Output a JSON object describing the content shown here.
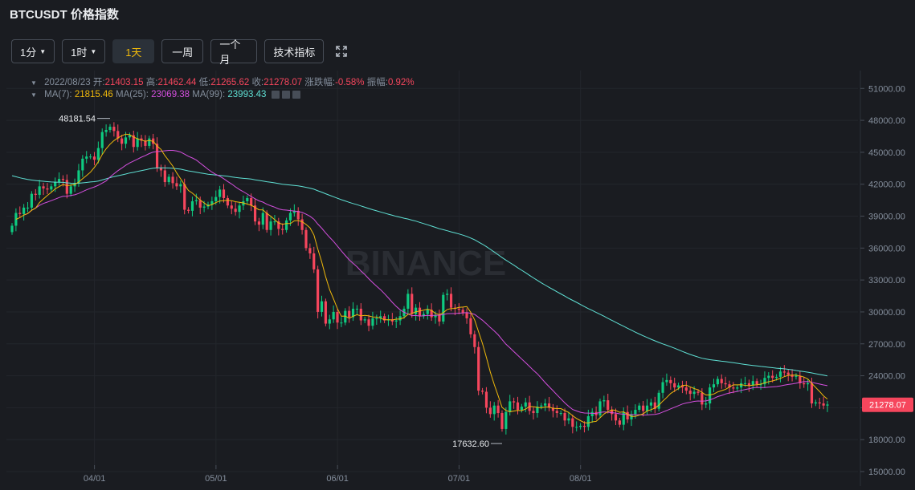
{
  "header": {
    "title": "BTCUSDT 价格指数"
  },
  "toolbar": {
    "interval_1m": "1分",
    "interval_1h": "1时",
    "interval_1d": "1天",
    "interval_1w": "一周",
    "interval_1M": "一个月",
    "indicators": "技术指标"
  },
  "ohlc": {
    "date": "2022/08/23",
    "open_label": "开:",
    "open": "21403.15",
    "high_label": "高:",
    "high": "21462.44",
    "low_label": "低:",
    "low": "21265.62",
    "close_label": "收:",
    "close": "21278.07",
    "change_label": "涨跌幅:",
    "change": "-0.58%",
    "amp_label": "振幅:",
    "amp": "0.92%"
  },
  "ma": {
    "ma7_label": "MA(7):",
    "ma7": "21815.46",
    "ma25_label": "MA(25):",
    "ma25": "23069.38",
    "ma99_label": "MA(99):",
    "ma99": "23993.43"
  },
  "colors": {
    "up": "#0ecb81",
    "down": "#f6465d",
    "ma7": "#f0b90b",
    "ma25": "#d44fde",
    "ma99": "#5fe0d4",
    "background": "#1a1c21",
    "grid": "#23262c"
  },
  "watermark": "BINANCE",
  "chart_data": {
    "type": "candlestick",
    "ylim": [
      15000,
      52000
    ],
    "y_ticks": [
      15000,
      18000,
      21000,
      24000,
      27000,
      30000,
      33000,
      36000,
      39000,
      42000,
      45000,
      48000,
      51000
    ],
    "y_tick_labels": [
      "15000.00",
      "18000.00",
      "21000.00",
      "24000.00",
      "27000.00",
      "30000.00",
      "33000.00",
      "36000.00",
      "39000.00",
      "42000.00",
      "45000.00",
      "48000.00",
      "51000.00"
    ],
    "x_ticks": [
      "04/01",
      "05/01",
      "06/01",
      "07/01",
      "08/01"
    ],
    "last_price_label": "21278.07",
    "high_annotation": "48181.54",
    "low_annotation": "17632.60",
    "close_prices": [
      38100,
      39300,
      39200,
      39800,
      39800,
      41100,
      41000,
      41800,
      41600,
      41500,
      41800,
      42200,
      42500,
      42400,
      41100,
      41800,
      42100,
      43300,
      44400,
      44600,
      44600,
      44300,
      45400,
      46900,
      47100,
      47400,
      47000,
      46300,
      45800,
      46400,
      46600,
      45500,
      46300,
      46100,
      45600,
      46300,
      45800,
      43500,
      43300,
      42200,
      42700,
      42100,
      41800,
      42000,
      39600,
      39500,
      40400,
      40500,
      39800,
      39900,
      40100,
      40400,
      40800,
      41500,
      40700,
      40000,
      39700,
      39400,
      40000,
      40400,
      40700,
      40000,
      38500,
      38200,
      39300,
      37700,
      38500,
      38500,
      37800,
      37700,
      38600,
      39300,
      39500,
      38700,
      37700,
      36000,
      35500,
      34000,
      30000,
      31000,
      28900,
      29300,
      30000,
      29000,
      29000,
      30100,
      29500,
      30300,
      30300,
      29200,
      29300,
      28700,
      29400,
      29400,
      29600,
      29200,
      29300,
      29100,
      29200,
      29600,
      30300,
      31700,
      29800,
      30400,
      29600,
      29800,
      30200,
      29500,
      29700,
      29100,
      31600,
      31700,
      30400,
      30300,
      30200,
      29900,
      29400,
      27900,
      26700,
      22600,
      22500,
      21000,
      20400,
      21200,
      20500,
      19000,
      20600,
      21600,
      21500,
      20800,
      21100,
      21500,
      20700,
      20500,
      21100,
      21200,
      21400,
      21000,
      20700,
      20500,
      20500,
      19800,
      20000,
      19200,
      19200,
      19300,
      19200,
      20200,
      20600,
      20300,
      21600,
      21700,
      20800,
      20400,
      19800,
      19400,
      20600,
      19900,
      20400,
      20800,
      21200,
      20700,
      21200,
      21500,
      20900,
      22400,
      23400,
      23600,
      23300,
      22900,
      23100,
      22900,
      22600,
      22300,
      22500,
      22400,
      21300,
      21400,
      22900,
      23200,
      23700,
      23300,
      23200,
      22900,
      22800,
      22900,
      23300,
      23300,
      23100,
      23500,
      23200,
      23200,
      23800,
      24000,
      23800,
      23900,
      24400,
      24300,
      24100,
      23900,
      24000,
      23300,
      23200,
      23300,
      21400,
      21500,
      21400,
      21200,
      21300
    ],
    "ma7_end": 21815.46,
    "ma25_end": 23069.38,
    "ma99_end": 23993.43
  }
}
